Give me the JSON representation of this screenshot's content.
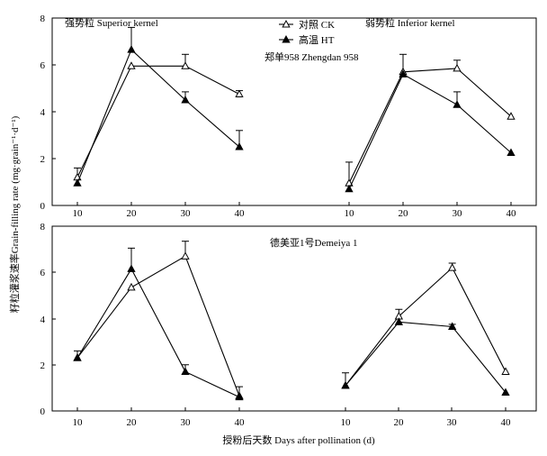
{
  "figure": {
    "ylabel": "籽粒灌浆速率Grain-filling rate (mg·grain⁻¹·d⁻¹)",
    "xlabel": "授粉后天数 Days after pollination (d)",
    "legend": [
      {
        "label": "对照 CK",
        "marker": "open-triangle"
      },
      {
        "label": "高温 HT",
        "marker": "filled-triangle"
      }
    ],
    "legend_placement": "top-center",
    "variety_labels": [
      "郑单958 Zhengdan 958",
      "德美亚1号Demeiya 1"
    ],
    "kernel_labels": [
      "强势粒 Superior kernel",
      "弱势粒 Inferior kernel"
    ]
  },
  "chart_data": [
    {
      "type": "line",
      "panel": "Zhengdan 958 - Superior kernel",
      "title": "强势粒 Superior kernel",
      "x": [
        10,
        20,
        30,
        40
      ],
      "ylim": [
        0,
        8
      ],
      "yticks": [
        0,
        2,
        4,
        6,
        8
      ],
      "series": [
        {
          "name": "对照 CK",
          "values": [
            1.2,
            5.95,
            5.95,
            4.75
          ],
          "err": [
            0.4,
            0,
            0.5,
            0.15
          ]
        },
        {
          "name": "高温 HT",
          "values": [
            0.95,
            6.65,
            4.5,
            2.5
          ],
          "err": [
            0,
            0.95,
            0.35,
            0.7
          ]
        }
      ]
    },
    {
      "type": "line",
      "panel": "Zhengdan 958 - Inferior kernel",
      "title": "弱势粒 Inferior kernel",
      "x": [
        10,
        20,
        30,
        40
      ],
      "ylim": [
        0,
        8
      ],
      "yticks": [
        0,
        2,
        4,
        6,
        8
      ],
      "series": [
        {
          "name": "对照 CK",
          "values": [
            0.95,
            5.7,
            5.85,
            3.8
          ],
          "err": [
            0.9,
            0.75,
            0.35,
            0
          ]
        },
        {
          "name": "高温 HT",
          "values": [
            0.7,
            5.6,
            4.3,
            2.25
          ],
          "err": [
            0,
            0,
            0.55,
            0
          ]
        }
      ]
    },
    {
      "type": "line",
      "panel": "Demeiya 1 - Superior kernel",
      "x": [
        10,
        20,
        30,
        40
      ],
      "ylim": [
        0,
        8
      ],
      "yticks": [
        0,
        2,
        4,
        6,
        8
      ],
      "series": [
        {
          "name": "对照 CK",
          "values": [
            2.3,
            5.35,
            6.7,
            0.65
          ],
          "err": [
            0.3,
            0,
            0.65,
            0.4
          ]
        },
        {
          "name": "高温 HT",
          "values": [
            2.3,
            6.15,
            1.7,
            0.6
          ],
          "err": [
            0,
            0.9,
            0.3,
            0
          ]
        }
      ]
    },
    {
      "type": "line",
      "panel": "Demeiya 1 - Inferior kernel",
      "x": [
        10,
        20,
        30,
        40
      ],
      "ylim": [
        0,
        8
      ],
      "yticks": [
        0,
        2,
        4,
        6,
        8
      ],
      "series": [
        {
          "name": "对照 CK",
          "values": [
            1.1,
            4.1,
            6.2,
            1.7
          ],
          "err": [
            0.55,
            0.3,
            0.2,
            0
          ]
        },
        {
          "name": "高温 HT",
          "values": [
            1.1,
            3.85,
            3.65,
            0.8
          ],
          "err": [
            0,
            0,
            0.1,
            0
          ]
        }
      ]
    }
  ]
}
